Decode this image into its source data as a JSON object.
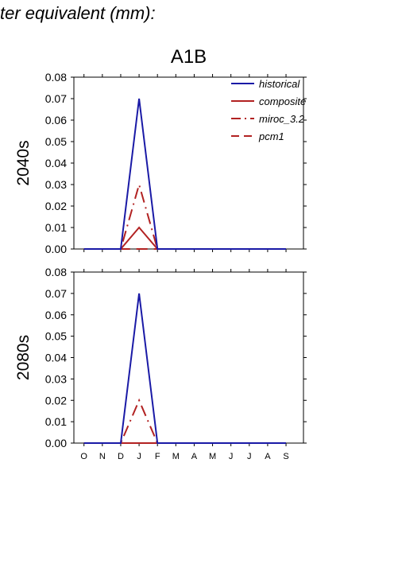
{
  "figure": {
    "title": "ter equivalent (mm):",
    "scenario": "A1B"
  },
  "colors": {
    "historical": "#1a1aa6",
    "projections": "#b22222"
  },
  "chart_data": [
    {
      "type": "line",
      "row_label": "2040s",
      "categories": [
        "O",
        "N",
        "D",
        "J",
        "F",
        "M",
        "A",
        "M",
        "J",
        "J",
        "A",
        "S"
      ],
      "ylim": [
        0,
        0.08
      ],
      "yticks": [
        "0.00",
        "0.01",
        "0.02",
        "0.03",
        "0.04",
        "0.05",
        "0.06",
        "0.07",
        "0.08"
      ],
      "legend": {
        "placement": "top-right"
      },
      "series": [
        {
          "name": "historical",
          "style": "solid",
          "color": "#1a1aa6",
          "values": [
            0,
            0,
            0,
            0.07,
            0,
            0,
            0,
            0,
            0,
            0,
            0,
            0
          ]
        },
        {
          "name": "composite",
          "style": "solid",
          "color": "#b22222",
          "values": [
            0,
            0,
            0,
            0.01,
            0,
            0,
            0,
            0,
            0,
            0,
            0,
            0
          ]
        },
        {
          "name": "miroc_3.2",
          "style": "dashdot",
          "color": "#b22222",
          "values": [
            0,
            0,
            0,
            0.03,
            0,
            0,
            0,
            0,
            0,
            0,
            0,
            0
          ]
        },
        {
          "name": "pcm1",
          "style": "dashed",
          "color": "#b22222",
          "values": [
            0,
            0,
            0,
            0,
            0,
            0,
            0,
            0,
            0,
            0,
            0,
            0
          ]
        }
      ]
    },
    {
      "type": "line",
      "row_label": "2080s",
      "categories": [
        "O",
        "N",
        "D",
        "J",
        "F",
        "M",
        "A",
        "M",
        "J",
        "J",
        "A",
        "S"
      ],
      "ylim": [
        0,
        0.08
      ],
      "yticks": [
        "0.00",
        "0.01",
        "0.02",
        "0.03",
        "0.04",
        "0.05",
        "0.06",
        "0.07",
        "0.08"
      ],
      "series": [
        {
          "name": "historical",
          "style": "solid",
          "color": "#1a1aa6",
          "values": [
            0,
            0,
            0,
            0.07,
            0,
            0,
            0,
            0,
            0,
            0,
            0,
            0
          ]
        },
        {
          "name": "composite",
          "style": "solid",
          "color": "#b22222",
          "values": [
            0,
            0,
            0,
            0,
            0,
            0,
            0,
            0,
            0,
            0,
            0,
            0
          ]
        },
        {
          "name": "miroc_3.2",
          "style": "dashdot",
          "color": "#b22222",
          "values": [
            0,
            0,
            0,
            0.02,
            0,
            0,
            0,
            0,
            0,
            0,
            0,
            0
          ]
        },
        {
          "name": "pcm1",
          "style": "dashed",
          "color": "#b22222",
          "values": [
            0,
            0,
            0,
            0,
            0,
            0,
            0,
            0,
            0,
            0,
            0,
            0
          ]
        }
      ]
    }
  ]
}
